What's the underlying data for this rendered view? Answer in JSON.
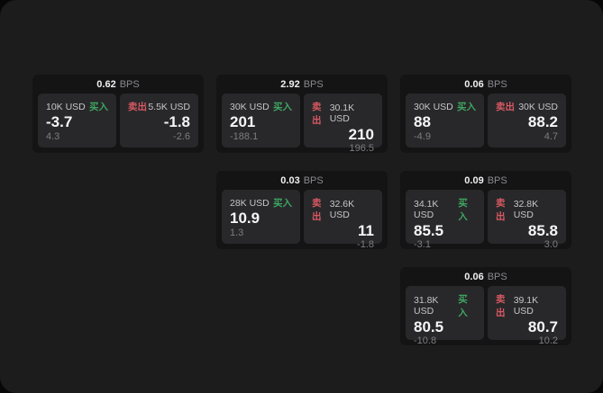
{
  "labels": {
    "buy": "买入",
    "sell": "卖出",
    "bps_unit": "BPS"
  },
  "colors": {
    "buy-green": "#3ea561",
    "sell-red": "#d75862"
  },
  "cards": [
    {
      "bps": "0.62",
      "buy": {
        "size": "10K USD",
        "main": "-3.7",
        "sub": "4.3"
      },
      "sell": {
        "size": "5.5K USD",
        "main": "-1.8",
        "sub": "-2.6"
      }
    },
    {
      "bps": "2.92",
      "buy": {
        "size": "30K USD",
        "main": "201",
        "sub": "-188.1"
      },
      "sell": {
        "size": "30.1K USD",
        "main": "210",
        "sub": "196.5"
      }
    },
    {
      "bps": "0.06",
      "buy": {
        "size": "30K USD",
        "main": "88",
        "sub": "-4.9"
      },
      "sell": {
        "size": "30K USD",
        "main": "88.2",
        "sub": "4.7"
      }
    },
    {
      "bps": "0.03",
      "buy": {
        "size": "28K USD",
        "main": "10.9",
        "sub": "1.3"
      },
      "sell": {
        "size": "32.6K USD",
        "main": "11",
        "sub": "-1.8"
      }
    },
    {
      "bps": "0.09",
      "buy": {
        "size": "34.1K USD",
        "main": "85.5",
        "sub": "-3.1"
      },
      "sell": {
        "size": "32.8K USD",
        "main": "85.8",
        "sub": "3.0"
      }
    },
    {
      "bps": "0.06",
      "buy": {
        "size": "31.8K USD",
        "main": "80.5",
        "sub": "-10.8"
      },
      "sell": {
        "size": "39.1K USD",
        "main": "80.7",
        "sub": "10.2"
      }
    }
  ]
}
